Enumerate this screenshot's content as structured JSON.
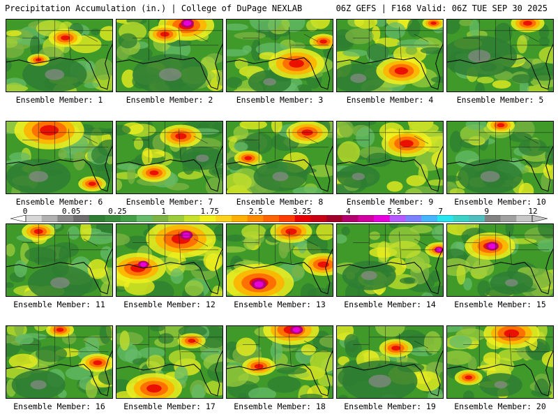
{
  "header": {
    "left_title": "Precipitation Accumulation (in.) | College of DuPage NEXLAB",
    "right_title": "06Z GEFS | F168 Valid: 06Z TUE SEP 30 2025"
  },
  "panels": [
    {
      "label": "Ensemble Member: 1",
      "heavy": [
        [
          0.55,
          0.25,
          0.12
        ],
        [
          0.3,
          0.55,
          0.08
        ]
      ],
      "dry": [
        [
          0.45,
          0.75,
          0.3
        ]
      ],
      "extreme": []
    },
    {
      "label": "Ensemble Member: 2",
      "heavy": [
        [
          0.65,
          0.08,
          0.2
        ],
        [
          0.45,
          0.2,
          0.12
        ]
      ],
      "dry": [
        [
          0.5,
          0.75,
          0.35
        ]
      ],
      "extreme": [
        [
          0.66,
          0.05,
          0.06
        ]
      ]
    },
    {
      "label": "Ensemble Member: 3",
      "heavy": [
        [
          0.65,
          0.6,
          0.2
        ],
        [
          0.9,
          0.3,
          0.1
        ]
      ],
      "dry": [
        [
          0.4,
          0.85,
          0.2
        ]
      ],
      "extreme": []
    },
    {
      "label": "Ensemble Member: 4",
      "heavy": [
        [
          0.6,
          0.7,
          0.18
        ],
        [
          0.9,
          0.05,
          0.08
        ]
      ],
      "dry": [
        [
          0.2,
          0.8,
          0.25
        ]
      ],
      "extreme": []
    },
    {
      "label": "Ensemble Member: 5",
      "heavy": [
        [
          0.75,
          0.05,
          0.12
        ]
      ],
      "dry": [
        [
          0.3,
          0.5,
          0.35
        ]
      ],
      "extreme": []
    },
    {
      "label": "Ensemble Member: 6",
      "heavy": [
        [
          0.4,
          0.12,
          0.25
        ],
        [
          0.8,
          0.85,
          0.1
        ]
      ],
      "dry": [
        [
          0.3,
          0.75,
          0.3
        ]
      ],
      "extreme": []
    },
    {
      "label": "Ensemble Member: 7",
      "heavy": [
        [
          0.35,
          0.7,
          0.12
        ],
        [
          0.6,
          0.2,
          0.15
        ]
      ],
      "dry": [
        [
          0.8,
          0.5,
          0.2
        ]
      ],
      "extreme": []
    },
    {
      "label": "Ensemble Member: 8",
      "heavy": [
        [
          0.75,
          0.15,
          0.15
        ],
        [
          0.2,
          0.5,
          0.1
        ]
      ],
      "dry": [
        [
          0.5,
          0.75,
          0.25
        ]
      ],
      "extreme": []
    },
    {
      "label": "Ensemble Member: 9",
      "heavy": [
        [
          0.65,
          0.3,
          0.18
        ]
      ],
      "dry": [
        [
          0.2,
          0.75,
          0.2
        ]
      ],
      "extreme": []
    },
    {
      "label": "Ensemble Member: 10",
      "heavy": [
        [
          0.5,
          0.05,
          0.1
        ]
      ],
      "dry": [
        [
          0.4,
          0.75,
          0.3
        ]
      ],
      "extreme": []
    },
    {
      "label": "Ensemble Member: 11",
      "heavy": [
        [
          0.3,
          0.1,
          0.12
        ]
      ],
      "dry": [
        [
          0.5,
          0.8,
          0.3
        ]
      ],
      "extreme": []
    },
    {
      "label": "Ensemble Member: 12",
      "heavy": [
        [
          0.6,
          0.2,
          0.25
        ],
        [
          0.2,
          0.6,
          0.2
        ]
      ],
      "dry": [],
      "extreme": [
        [
          0.65,
          0.15,
          0.06
        ],
        [
          0.25,
          0.55,
          0.05
        ]
      ]
    },
    {
      "label": "Ensemble Member: 13",
      "heavy": [
        [
          0.3,
          0.8,
          0.25
        ],
        [
          0.9,
          0.55,
          0.15
        ],
        [
          0.6,
          0.1,
          0.15
        ]
      ],
      "dry": [],
      "extreme": [
        [
          0.3,
          0.82,
          0.07
        ]
      ]
    },
    {
      "label": "Ensemble Member: 14",
      "heavy": [
        [
          0.95,
          0.35,
          0.1
        ]
      ],
      "dry": [
        [
          0.3,
          0.7,
          0.25
        ]
      ],
      "extreme": [
        [
          0.95,
          0.35,
          0.04
        ]
      ]
    },
    {
      "label": "Ensemble Member: 15",
      "heavy": [
        [
          0.4,
          0.3,
          0.18
        ]
      ],
      "dry": [
        [
          0.6,
          0.8,
          0.2
        ]
      ],
      "extreme": [
        [
          0.42,
          0.3,
          0.06
        ]
      ]
    },
    {
      "label": "Ensemble Member: 16",
      "heavy": [
        [
          0.85,
          0.5,
          0.12
        ],
        [
          0.5,
          0.05,
          0.1
        ]
      ],
      "dry": [
        [
          0.3,
          0.8,
          0.25
        ]
      ],
      "extreme": []
    },
    {
      "label": "Ensemble Member: 17",
      "heavy": [
        [
          0.35,
          0.85,
          0.2
        ],
        [
          0.7,
          0.2,
          0.1
        ]
      ],
      "dry": [],
      "extreme": []
    },
    {
      "label": "Ensemble Member: 18",
      "heavy": [
        [
          0.6,
          0.05,
          0.2
        ],
        [
          0.3,
          0.55,
          0.12
        ]
      ],
      "dry": [],
      "extreme": [
        [
          0.65,
          0.05,
          0.06
        ]
      ]
    },
    {
      "label": "Ensemble Member: 19",
      "heavy": [
        [
          0.55,
          0.3,
          0.12
        ]
      ],
      "dry": [
        [
          0.4,
          0.75,
          0.35
        ]
      ],
      "extreme": []
    },
    {
      "label": "Ensemble Member: 20",
      "heavy": [
        [
          0.6,
          0.1,
          0.2
        ],
        [
          0.2,
          0.7,
          0.1
        ]
      ],
      "dry": [
        [
          0.5,
          0.8,
          0.2
        ]
      ],
      "extreme": []
    }
  ],
  "colorbar": {
    "tick_labels": [
      "0",
      "0.05",
      "0.25",
      "1",
      "1.75",
      "2.5",
      "3.25",
      "4",
      "5.5",
      "7",
      "9",
      "12"
    ],
    "colors": [
      "#d7d7d7",
      "#b0b0b0",
      "#8a8a8a",
      "#6d6d6d",
      "#2e7d32",
      "#388e3c",
      "#43a047",
      "#66bb6a",
      "#7cb342",
      "#9ccc3c",
      "#c6e02c",
      "#f0f01e",
      "#ffd21e",
      "#ffb000",
      "#ff8c00",
      "#ff6400",
      "#ff3c00",
      "#e60000",
      "#c80014",
      "#a00028",
      "#b4006e",
      "#d200a0",
      "#e600dc",
      "#b45aff",
      "#7a82ff",
      "#46b4ff",
      "#28e6f0",
      "#3cd2c8",
      "#50bebe",
      "#828282",
      "#a0a0a0",
      "#c8c8c8"
    ]
  }
}
